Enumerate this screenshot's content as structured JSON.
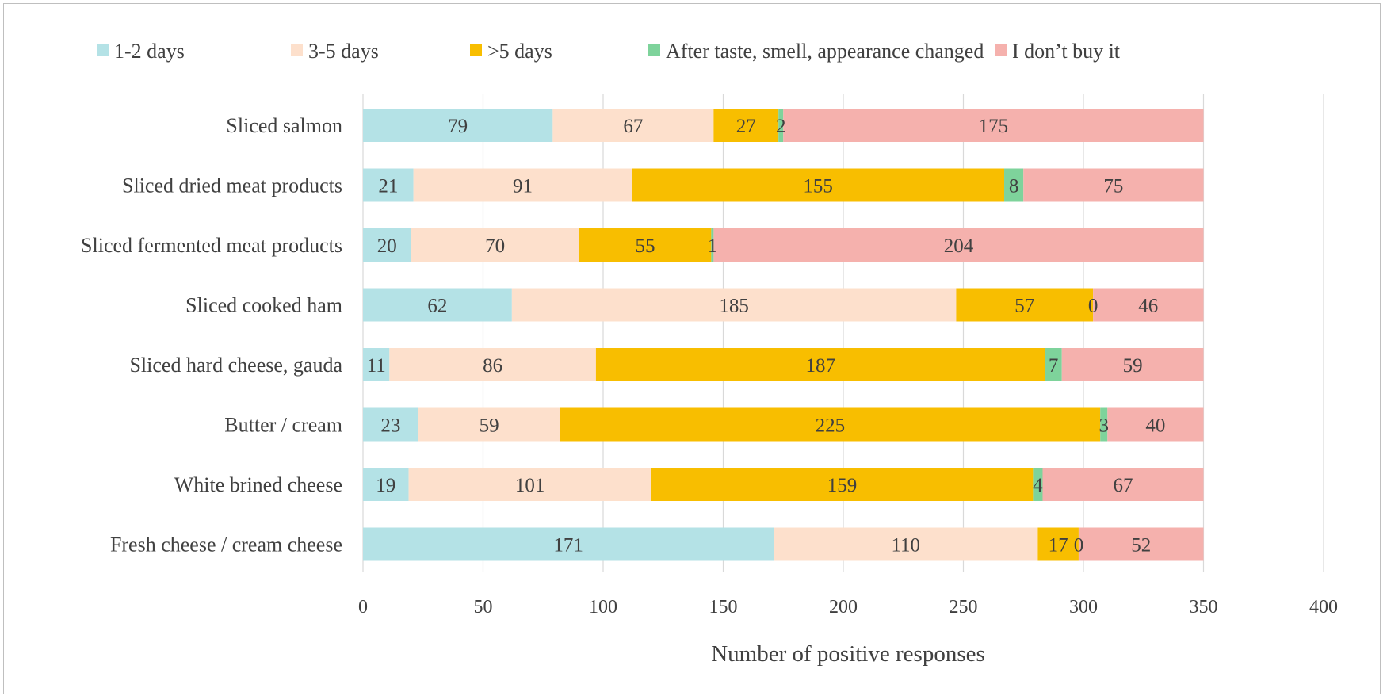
{
  "chart_data": {
    "type": "bar",
    "orientation": "horizontal",
    "stacked": true,
    "title": "",
    "xlabel": "Number of positive responses",
    "ylabel": "",
    "xlim": [
      0,
      400
    ],
    "xticks": [
      0,
      50,
      100,
      150,
      200,
      250,
      300,
      350,
      400
    ],
    "grid": true,
    "legend_position": "top",
    "categories": [
      "Sliced salmon",
      "Sliced dried meat products",
      "Sliced fermented meat products",
      "Sliced cooked ham",
      "Sliced hard cheese, gauda",
      "Butter / cream",
      "White brined cheese",
      "Fresh cheese / cream cheese"
    ],
    "series": [
      {
        "name": "1-2 days",
        "color": "#b4e2e6",
        "values": [
          79,
          21,
          20,
          62,
          11,
          23,
          19,
          171
        ]
      },
      {
        "name": "3-5 days",
        "color": "#fde0cc",
        "values": [
          67,
          91,
          70,
          185,
          86,
          59,
          101,
          110
        ]
      },
      {
        "name": ">5 days",
        "color": "#f8be00",
        "values": [
          27,
          155,
          55,
          57,
          187,
          225,
          159,
          17
        ]
      },
      {
        "name": "After taste, smell, appearance changed",
        "color": "#7ed39b",
        "values": [
          2,
          8,
          1,
          0,
          7,
          3,
          4,
          0
        ]
      },
      {
        "name": "I don’t buy it",
        "color": "#f5b1ad",
        "values": [
          175,
          75,
          204,
          46,
          59,
          40,
          67,
          52
        ]
      }
    ]
  }
}
